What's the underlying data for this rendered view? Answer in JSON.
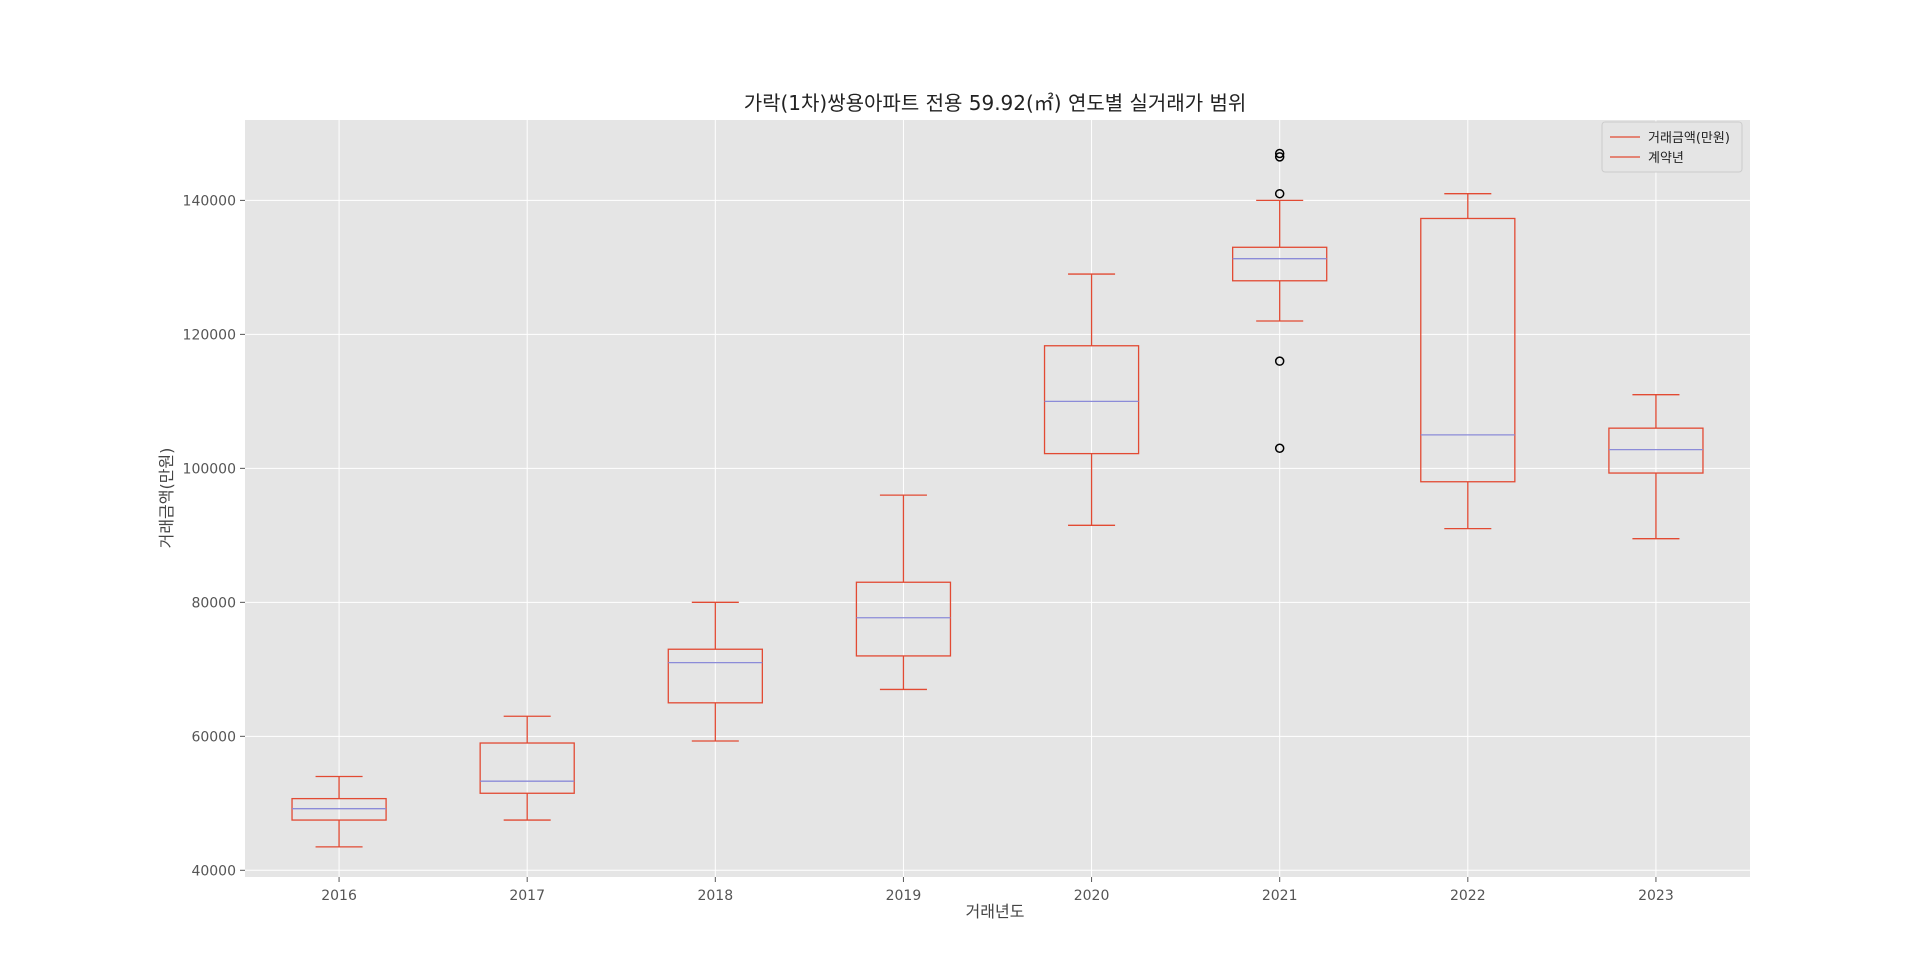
{
  "chart_data": {
    "type": "box",
    "title": "가락(1차)쌍용아파트 전용 59.92(㎡) 연도별 실거래가 범위",
    "xlabel": "거래년도",
    "ylabel": "거래금액(만원)",
    "categories": [
      "2016",
      "2017",
      "2018",
      "2019",
      "2020",
      "2021",
      "2022",
      "2023"
    ],
    "ylim": [
      39000,
      152000
    ],
    "yticks": [
      40000,
      60000,
      80000,
      100000,
      120000,
      140000
    ],
    "yticks_text": [
      "40000",
      "60000",
      "80000",
      "100000",
      "120000",
      "140000"
    ],
    "grid": true,
    "legend": {
      "placement": "top-right",
      "entries": [
        "거래금액(만원)",
        "계약년"
      ]
    },
    "boxes": [
      {
        "category": "2016",
        "whisker_low": 43500,
        "q1": 47500,
        "median": 49200,
        "q3": 50700,
        "whisker_high": 54000,
        "outliers": []
      },
      {
        "category": "2017",
        "whisker_low": 47500,
        "q1": 51500,
        "median": 53300,
        "q3": 59000,
        "whisker_high": 63000,
        "outliers": []
      },
      {
        "category": "2018",
        "whisker_low": 59300,
        "q1": 65000,
        "median": 71000,
        "q3": 73000,
        "whisker_high": 80000,
        "outliers": []
      },
      {
        "category": "2019",
        "whisker_low": 67000,
        "q1": 72000,
        "median": 77700,
        "q3": 83000,
        "whisker_high": 96000,
        "outliers": []
      },
      {
        "category": "2020",
        "whisker_low": 91500,
        "q1": 102200,
        "median": 110000,
        "q3": 118300,
        "whisker_high": 129000,
        "outliers": []
      },
      {
        "category": "2021",
        "whisker_low": 122000,
        "q1": 128000,
        "median": 131300,
        "q3": 133000,
        "whisker_high": 140000,
        "outliers": [
          147000,
          146500,
          141000,
          116000,
          103000
        ]
      },
      {
        "category": "2022",
        "whisker_low": 91000,
        "q1": 98000,
        "median": 105000,
        "q3": 137300,
        "whisker_high": 141000,
        "outliers": []
      },
      {
        "category": "2023",
        "whisker_low": 89500,
        "q1": 99300,
        "median": 102800,
        "q3": 106000,
        "whisker_high": 111000,
        "outliers": []
      }
    ],
    "colors": {
      "box": "#e24a33",
      "median": "#8b8bd8",
      "plot_bg": "#e5e5e5",
      "grid": "#ffffff",
      "outlier": "#000000"
    }
  }
}
